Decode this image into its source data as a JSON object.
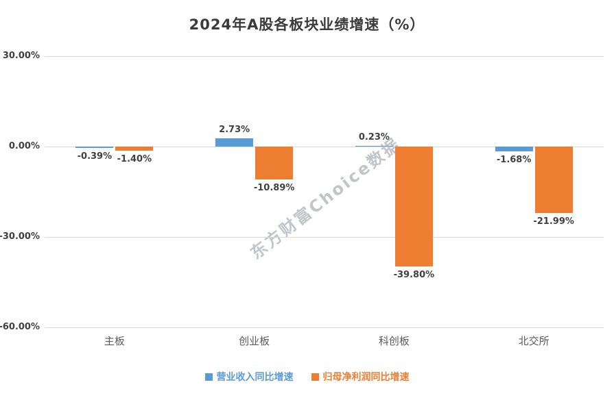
{
  "watermark": "东方财富Choice数据",
  "chart_data": {
    "type": "bar",
    "title": "2024年A股各板块业绩增速（%）",
    "categories": [
      "主板",
      "创业板",
      "科创板",
      "北交所"
    ],
    "series": [
      {
        "name": "营业收入同比增速",
        "color": "#5B9BD5",
        "values": [
          -0.39,
          2.73,
          0.23,
          -1.68
        ]
      },
      {
        "name": "归母净利润同比增速",
        "color": "#ED7D31",
        "values": [
          -1.4,
          -10.89,
          -39.8,
          -21.99
        ]
      }
    ],
    "value_labels": [
      [
        "-0.39%",
        "2.73%",
        "0.23%",
        "-1.68%"
      ],
      [
        "-1.40%",
        "-10.89%",
        "-39.80%",
        "-21.99%"
      ]
    ],
    "ylim": [
      -60,
      30
    ],
    "yticks": [
      30,
      0,
      -30,
      -60
    ],
    "ytick_labels": [
      "30.00%",
      "0.00%",
      "-30.00%",
      "-60.00%"
    ],
    "grid": true,
    "legend_position": "bottom"
  }
}
